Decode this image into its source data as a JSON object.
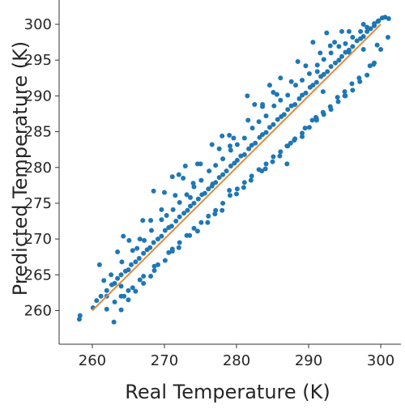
{
  "colors": {
    "points": "#1f77b4",
    "fit_line": "#e08a3c",
    "axis": "#333333",
    "text": "#262626"
  },
  "chart_data": {
    "type": "scatter",
    "title": "",
    "xlabel": "Real Temperature (K)",
    "ylabel": "Predicted Temperature (K)",
    "xlim": [
      255.4,
      302.8
    ],
    "ylim": [
      255.3,
      303.4
    ],
    "xticks": [
      260,
      270,
      280,
      290,
      300
    ],
    "yticks": [
      260,
      265,
      270,
      275,
      280,
      285,
      290,
      295,
      300
    ],
    "grid": false,
    "legend": "none",
    "series": [
      {
        "kind": "scatter",
        "x": [
          258.2,
          258.3,
          260.1,
          260.6,
          261.2,
          262.0,
          262.7,
          263.1,
          263.5,
          264.0,
          264.6,
          265.0,
          265.4,
          266.0,
          266.5,
          267.1,
          267.6,
          268.0,
          268.5,
          269.1,
          269.6,
          270.1,
          270.6,
          271.0,
          271.6,
          272.1,
          272.7,
          273.2,
          273.6,
          274.1,
          274.7,
          275.2,
          275.6,
          276.1,
          276.7,
          277.1,
          277.6,
          278.1,
          278.6,
          279.2,
          279.7,
          280.1,
          280.6,
          281.1,
          281.7,
          282.1,
          282.6,
          283.2,
          283.6,
          284.1,
          284.6,
          285.1,
          285.7,
          286.2,
          286.6,
          287.1,
          287.6,
          288.1,
          288.7,
          289.1,
          289.6,
          290.2,
          290.6,
          291.1,
          291.7,
          292.1,
          292.6,
          293.1,
          293.7,
          294.2,
          294.6,
          295.1,
          295.6,
          296.1,
          296.7,
          297.2,
          297.6,
          298.1,
          298.6,
          299.1,
          299.7,
          300.2,
          300.6,
          301.1,
          261.6,
          262.6,
          264.1,
          265.6,
          266.2,
          267.2,
          268.2,
          269.6,
          270.3,
          271.2,
          272.1,
          273.1,
          274.1,
          275.1,
          276.2,
          277.1,
          278.1,
          279.2,
          280.1,
          281.1,
          282.2,
          283.1,
          284.1,
          285.2,
          286.1,
          287.1,
          288.2,
          289.1,
          290.1,
          291.2,
          292.1,
          293.1,
          294.2,
          295.1,
          296.1,
          297.2,
          298.1,
          299.1,
          262.0,
          263.1,
          264.0,
          264.4,
          265.6,
          266.6,
          267.1,
          268.6,
          269.1,
          270.6,
          271.1,
          272.1,
          273.1,
          274.1,
          275.1,
          276.1,
          277.1,
          278.1,
          279.1,
          280.1,
          281.1,
          282.1,
          283.1,
          284.1,
          285.1,
          286.1,
          287.1,
          288.1,
          289.1,
          290.1,
          291.1,
          292.1,
          293.1,
          294.1,
          295.1,
          296.1,
          297.1,
          298.1,
          299.1,
          261.0,
          263.5,
          266.6,
          268.1,
          269.6,
          271.5,
          272.6,
          274.6,
          277.6,
          279.6,
          281.6,
          283.6,
          285.6,
          287.6,
          289.6,
          291.6,
          293.6,
          295.6,
          297.6,
          299.6,
          263.0,
          264.0,
          265.0,
          266.0,
          267.1,
          268.1,
          268.6,
          270.1,
          271.1,
          272.0,
          273.5,
          274.6,
          276.0,
          277.0,
          278.0,
          280.0,
          281.0,
          282.0,
          283.5,
          284.0,
          285.0,
          286.0,
          287.5,
          288.0,
          289.5,
          290.5,
          291.0,
          292.0,
          293.0,
          294.0,
          295.0,
          296.0,
          297.0,
          298.5,
          299.0,
          300.0,
          301.0,
          265.0,
          270.0,
          271.1,
          272.0,
          272.9,
          275.0,
          276.6,
          278.0,
          279.0,
          281.5,
          282.5,
          284.6,
          286.1,
          288.5,
          290.6,
          292.5,
          293.0,
          294.6,
          297.6,
          264.3,
          265.1,
          267.0,
          268.5,
          274.0,
          279.1,
          279.0,
          287.0,
          287.0,
          291.1,
          295.0,
          262.0,
          264.0,
          273.6,
          276.6,
          283.6,
          285.1,
          289.1,
          291.2,
          295.6,
          292.0,
          299.5
        ],
        "y": [
          258.8,
          259.3,
          260.4,
          261.4,
          262.0,
          262.8,
          263.6,
          263.8,
          264.5,
          265.0,
          265.5,
          265.7,
          266.4,
          266.8,
          267.3,
          268.0,
          268.5,
          268.8,
          269.5,
          270.0,
          270.4,
          271.2,
          271.6,
          271.8,
          272.5,
          273.1,
          273.6,
          274.0,
          274.6,
          275.0,
          275.6,
          276.2,
          276.4,
          277.0,
          277.7,
          277.9,
          278.6,
          279.0,
          279.5,
          280.2,
          280.6,
          281.0,
          281.6,
          281.8,
          282.6,
          283.1,
          283.4,
          284.2,
          284.6,
          284.9,
          285.6,
          286.0,
          286.7,
          287.1,
          287.4,
          288.1,
          288.6,
          288.8,
          289.6,
          290.1,
          290.4,
          291.2,
          291.5,
          291.9,
          292.7,
          293.0,
          293.4,
          294.1,
          294.6,
          295.0,
          295.5,
          296.1,
          296.4,
          296.9,
          297.7,
          298.0,
          298.3,
          299.0,
          299.4,
          299.8,
          300.5,
          300.9,
          301.0,
          300.8,
          264.2,
          265.0,
          266.8,
          268.4,
          268.7,
          269.8,
          271.2,
          272.7,
          273.3,
          274.1,
          275.1,
          276.2,
          277.3,
          278.2,
          279.5,
          280.3,
          281.2,
          282.4,
          283.2,
          284.1,
          285.5,
          286.4,
          287.2,
          288.6,
          289.4,
          290.1,
          291.5,
          292.2,
          293.1,
          294.3,
          295.1,
          296.0,
          296.9,
          297.3,
          298.2,
          299.0,
          299.6,
          300.1,
          260.2,
          261.2,
          262.0,
          262.0,
          263.2,
          264.3,
          264.8,
          266.2,
          266.4,
          268.1,
          268.6,
          269.5,
          270.5,
          271.5,
          272.3,
          273.2,
          274.0,
          275.0,
          276.1,
          277.0,
          277.9,
          278.8,
          279.7,
          280.5,
          281.5,
          282.2,
          283.0,
          284.0,
          284.8,
          285.6,
          286.6,
          287.4,
          288.1,
          289.2,
          290.0,
          290.8,
          292.0,
          292.9,
          294.6,
          266.4,
          268.2,
          270.0,
          272.6,
          274.1,
          276.1,
          278.5,
          280.5,
          282.6,
          284.1,
          286.6,
          288.5,
          290.2,
          292.0,
          294.2,
          296.0,
          297.5,
          299.0,
          300.0,
          300.4,
          258.4,
          260.1,
          261.5,
          262.7,
          263.8,
          264.8,
          265.6,
          267.0,
          268.3,
          268.8,
          270.5,
          271.1,
          272.3,
          273.5,
          274.0,
          276.3,
          277.2,
          278.2,
          279.5,
          279.8,
          280.8,
          281.6,
          283.4,
          283.8,
          285.5,
          286.6,
          287.0,
          287.7,
          288.5,
          289.8,
          290.6,
          291.7,
          292.5,
          294.2,
          294.4,
          296.5,
          298.2,
          262.8,
          276.5,
          278.7,
          279.0,
          280.2,
          280.5,
          283.2,
          284.4,
          284.5,
          290.0,
          288.8,
          291.5,
          292.5,
          294.8,
          297.5,
          298.8,
          297.0,
          299.0,
          296.5,
          270.4,
          269.8,
          272.6,
          276.7,
          277.8,
          283.0,
          276.8,
          280.5,
          283.0,
          286.8,
          290.0,
          262.0,
          263.4,
          275.8,
          277.4,
          288.8,
          290.5,
          284.3,
          293.4,
          296.1,
          290.6,
          297.1
        ]
      },
      {
        "kind": "line",
        "x": [
          260.0,
          300.0
        ],
        "y": [
          260.0,
          300.0
        ]
      }
    ]
  }
}
